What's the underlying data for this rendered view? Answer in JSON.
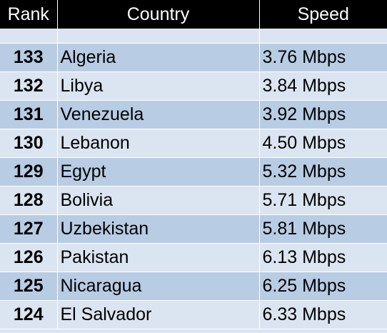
{
  "header": {
    "rank": "Rank",
    "country": "Country",
    "speed": "Speed"
  },
  "rows": [
    {
      "rank": "133",
      "country": "Algeria",
      "speed": "3.76 Mbps"
    },
    {
      "rank": "132",
      "country": "Libya",
      "speed": "3.84 Mbps"
    },
    {
      "rank": "131",
      "country": "Venezuela",
      "speed": "3.92 Mbps"
    },
    {
      "rank": "130",
      "country": "Lebanon",
      "speed": "4.50 Mbps"
    },
    {
      "rank": "129",
      "country": "Egypt",
      "speed": "5.32 Mbps"
    },
    {
      "rank": "128",
      "country": "Bolivia",
      "speed": "5.71 Mbps"
    },
    {
      "rank": "127",
      "country": "Uzbekistan",
      "speed": "5.81 Mbps"
    },
    {
      "rank": "126",
      "country": "Pakistan",
      "speed": "6.13 Mbps"
    },
    {
      "rank": "125",
      "country": "Nicaragua",
      "speed": "6.25 Mbps"
    },
    {
      "rank": "124",
      "country": "El Salvador",
      "speed": "6.33 Mbps"
    }
  ]
}
